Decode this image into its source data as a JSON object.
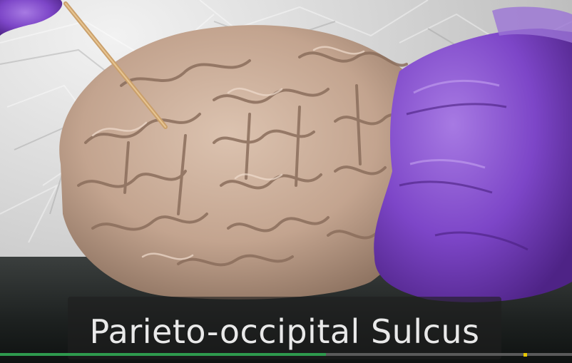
{
  "caption": {
    "text": "Parieto-occipital Sulcus"
  },
  "scene": {
    "subject": "brain-specimen",
    "pointer": "wooden-probe",
    "glove_color": "#7a3fc2",
    "brain_color": "#c8ab98"
  },
  "playback": {
    "progress_fraction": 0.57,
    "marker_fraction": 0.915
  },
  "colors": {
    "progress": "#2e9a4e",
    "marker": "#e7c800"
  }
}
